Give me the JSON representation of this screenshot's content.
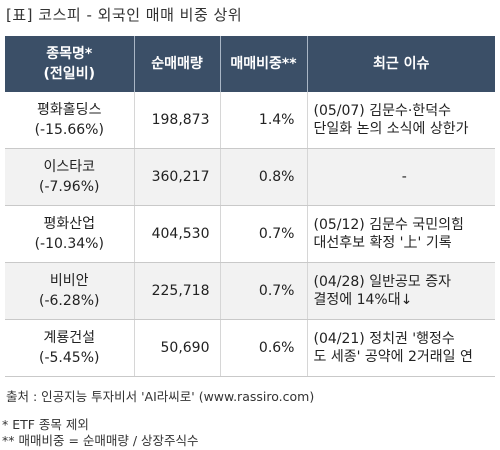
{
  "title": "[표] 코스피 - 외국인 매매 비중 상위",
  "headers": {
    "name_line1": "종목명*",
    "name_line2": "(전일비)",
    "net_volume": "순매매량",
    "ratio": "매매비중**",
    "news": "최근 이슈"
  },
  "rows": [
    {
      "name": "평화홀딩스",
      "change": "(-15.66%)",
      "net_volume": "198,873",
      "ratio": "1.4%",
      "news_line1": "(05/07) 김문수·한덕수",
      "news_line2": "단일화 논의 소식에 상한가"
    },
    {
      "name": "이스타코",
      "change": "(-7.96%)",
      "net_volume": "360,217",
      "ratio": "0.8%",
      "news_line1": "-",
      "news_line2": ""
    },
    {
      "name": "평화산업",
      "change": "(-10.34%)",
      "net_volume": "404,530",
      "ratio": "0.7%",
      "news_line1": "(05/12) 김문수 국민의힘",
      "news_line2": "대선후보 확정 '上' 기록"
    },
    {
      "name": "비비안",
      "change": "(-6.28%)",
      "net_volume": "225,718",
      "ratio": "0.7%",
      "news_line1": "(04/28) 일반공모 증자",
      "news_line2": "결정에 14%대↓"
    },
    {
      "name": "계룡건설",
      "change": "(-5.45%)",
      "net_volume": "50,690",
      "ratio": "0.6%",
      "news_line1": "(04/21) 정치권 '행정수",
      "news_line2": "도 세종' 공약에 2거래일 연"
    }
  ],
  "source": "출처 : 인공지능 투자비서 'AI라씨로' (www.rassiro.com)",
  "notes": {
    "note1": "* ETF 종목 제외",
    "note2": "** 매매비중 = 순매매량 / 상장주식수"
  },
  "colors": {
    "header_bg": "#3b4f67",
    "ratio_text": "#e00000"
  }
}
